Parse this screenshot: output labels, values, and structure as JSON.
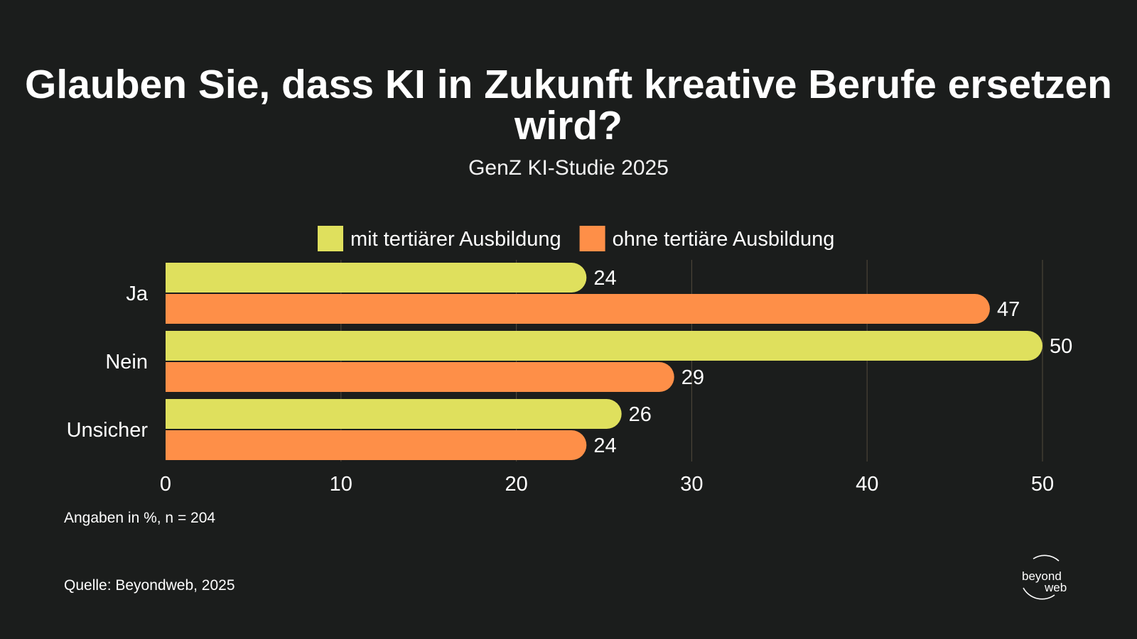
{
  "title": "Glauben Sie, dass KI in Zukunft kreative Berufe ersetzen wird?",
  "subtitle": "GenZ KI-Studie 2025",
  "note": "Angaben in %, n = 204",
  "source": "Quelle: Beyondweb, 2025",
  "logo": {
    "line1": "beyond",
    "line2": "web"
  },
  "chart_data": {
    "type": "bar",
    "orientation": "horizontal",
    "categories": [
      "Ja",
      "Nein",
      "Unsicher"
    ],
    "series": [
      {
        "name": "mit tertiärer Ausbildung",
        "color": "#dfe05d",
        "values": [
          24,
          50,
          26
        ]
      },
      {
        "name": "ohne tertiäre Ausbildung",
        "color": "#fe8f48",
        "values": [
          47,
          29,
          24
        ]
      }
    ],
    "xlim": [
      0,
      50
    ],
    "xticks": [
      0,
      10,
      20,
      30,
      40,
      50
    ],
    "grid": true,
    "legend": "top",
    "data_labels": true
  }
}
